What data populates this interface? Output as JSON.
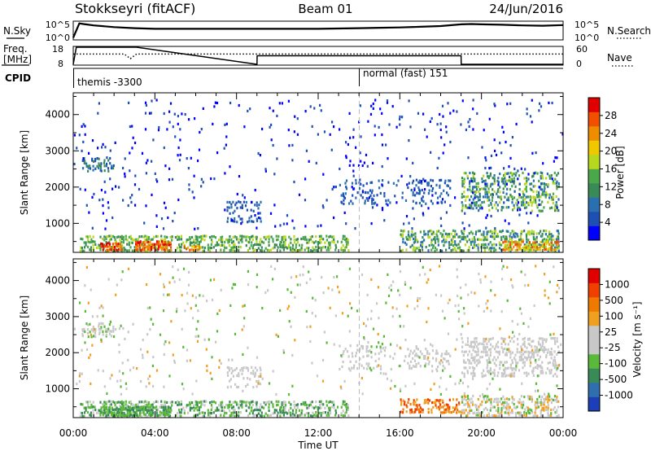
{
  "header": {
    "station": "Stokkseyri (fitACF)",
    "beam": "Beam 01",
    "date": "24/Jun/2016"
  },
  "noise_panel": {
    "left_label": "N.Sky",
    "right_label": "N.Search",
    "left_ticks": [
      "10^5",
      "10^0"
    ],
    "right_ticks": [
      "10^5",
      "10^0"
    ]
  },
  "freq_panel": {
    "left_label_line1": "Freq.",
    "left_label_line2": "[MHz]",
    "right_label": "Nave",
    "left_ticks": [
      "18",
      "8"
    ],
    "right_ticks": [
      "60",
      "0"
    ]
  },
  "cpid_panel": {
    "label": "CPID",
    "programs": [
      {
        "name": "themis -3300",
        "start_hour": 0,
        "end_hour": 14
      },
      {
        "name": "normal (fast) 151",
        "start_hour": 14,
        "end_hour": 24
      }
    ]
  },
  "colors": {
    "power_scale": [
      "#0000ff",
      "#1e50b4",
      "#2a6fb0",
      "#3a8a58",
      "#4aa84a",
      "#b8d820",
      "#f0c800",
      "#f08c00",
      "#f05000",
      "#e00000"
    ],
    "velocity_scale": [
      "#1c3fb8",
      "#2f6fb0",
      "#3a8a58",
      "#5ab83a",
      "#c8c8c8",
      "#c8c8c8",
      "#f0a020",
      "#f07a00",
      "#f04000",
      "#e00000"
    ]
  },
  "chart_data": [
    {
      "type": "line",
      "title": "N.Sky / N.Search",
      "x": [
        0,
        0.3,
        0.5,
        1,
        2,
        3,
        4,
        5,
        6,
        7,
        8,
        9,
        10,
        11,
        12,
        13,
        14,
        15,
        16,
        17,
        18,
        19,
        19.5,
        20,
        21,
        22,
        23,
        24
      ],
      "series": [
        {
          "name": "N.Sky",
          "values": [
            0.4,
            4.6,
            4.4,
            4.0,
            3.5,
            3.2,
            3.0,
            3.0,
            3.0,
            3.0,
            3.0,
            3.0,
            3.0,
            3.0,
            3.0,
            3.1,
            3.2,
            3.3,
            3.4,
            3.6,
            3.8,
            4.3,
            4.4,
            4.3,
            4.2,
            4.0,
            3.9,
            4.1
          ]
        }
      ],
      "ylim": [
        0,
        5
      ],
      "ylabel": "N.Sky",
      "xlim": [
        0,
        24
      ]
    },
    {
      "type": "line",
      "title": "Freq. / Nave",
      "x": [
        0,
        0.15,
        2.5,
        2.8,
        3.1,
        9,
        9.01,
        19,
        19.01,
        24
      ],
      "series": [
        {
          "name": "Freq.",
          "values": [
            8,
            18,
            18,
            18,
            18,
            8,
            13,
            13,
            8,
            8
          ]
        },
        {
          "name": "Nave",
          "values": [
            36,
            36,
            36,
            20,
            36,
            36,
            36,
            36,
            36,
            36
          ]
        }
      ],
      "ylim": [
        8,
        18
      ],
      "ylabel": "Freq. [MHz]",
      "xlim": [
        0,
        24
      ]
    },
    {
      "type": "heatmap",
      "title": "Power",
      "xlabel": "",
      "ylabel": "Slant Range [km]",
      "xlim": [
        0,
        24
      ],
      "ylim": [
        200,
        4600
      ],
      "yticks": [
        1000,
        2000,
        3000,
        4000
      ],
      "colorbar": {
        "label": "Power [dB]",
        "ticks": [
          "28",
          "24",
          "20",
          "16",
          "12",
          "8",
          "4"
        ]
      },
      "regions": [
        {
          "t0": 0.3,
          "t1": 13.5,
          "r0": 200,
          "r1": 650,
          "dens": 0.55,
          "base": 3,
          "spread": 3
        },
        {
          "t0": 1.3,
          "t1": 2.4,
          "r0": 220,
          "r1": 460,
          "dens": 0.85,
          "base": 7,
          "spread": 3
        },
        {
          "t0": 3.0,
          "t1": 4.8,
          "r0": 220,
          "r1": 500,
          "dens": 0.85,
          "base": 7,
          "spread": 3
        },
        {
          "t0": 5.3,
          "t1": 6.2,
          "r0": 220,
          "r1": 380,
          "dens": 0.7,
          "base": 6,
          "spread": 3
        },
        {
          "t0": 0.4,
          "t1": 2.0,
          "r0": 2400,
          "r1": 2800,
          "dens": 0.45,
          "base": 1,
          "spread": 3
        },
        {
          "t0": 7.5,
          "t1": 9.2,
          "r0": 1000,
          "r1": 1600,
          "dens": 0.35,
          "base": 1,
          "spread": 2
        },
        {
          "t0": 13.0,
          "t1": 18.5,
          "r0": 1500,
          "r1": 2200,
          "dens": 0.18,
          "base": 1,
          "spread": 2
        },
        {
          "t0": 19.0,
          "t1": 23.8,
          "r0": 1300,
          "r1": 2400,
          "dens": 0.4,
          "base": 2,
          "spread": 4
        },
        {
          "t0": 16.0,
          "t1": 23.8,
          "r0": 200,
          "r1": 800,
          "dens": 0.5,
          "base": 2,
          "spread": 4
        },
        {
          "t0": 21.0,
          "t1": 23.8,
          "r0": 220,
          "r1": 500,
          "dens": 0.6,
          "base": 5,
          "spread": 4
        },
        {
          "t0": 0.0,
          "t1": 24.0,
          "r0": 800,
          "r1": 4400,
          "dens": 0.03,
          "base": 0,
          "spread": 2
        }
      ]
    },
    {
      "type": "heatmap",
      "title": "Velocity",
      "xlabel": "Time UT",
      "ylabel": "Slant Range [km]",
      "xlim": [
        0,
        24
      ],
      "ylim": [
        200,
        4600
      ],
      "yticks": [
        1000,
        2000,
        3000,
        4000
      ],
      "xticks": [
        "00:00",
        "04:00",
        "08:00",
        "12:00",
        "16:00",
        "20:00",
        "00:00"
      ],
      "colorbar": {
        "label": "Velocity [m s⁻¹]",
        "ticks": [
          "1000",
          "500",
          "100",
          "25",
          "-25",
          "-100",
          "-500",
          "-1000"
        ]
      },
      "regions": [
        {
          "t0": 0.3,
          "t1": 13.5,
          "r0": 200,
          "r1": 650,
          "dens": 0.55,
          "base": 2,
          "spread": 3
        },
        {
          "t0": 1.3,
          "t1": 4.8,
          "r0": 220,
          "r1": 500,
          "dens": 0.8,
          "base": 2,
          "spread": 2
        },
        {
          "t0": 0.4,
          "t1": 2.0,
          "r0": 2400,
          "r1": 2800,
          "dens": 0.45,
          "base": 3,
          "spread": 3
        },
        {
          "t0": 7.5,
          "t1": 9.2,
          "r0": 1000,
          "r1": 1600,
          "dens": 0.35,
          "base": 4,
          "spread": 2
        },
        {
          "t0": 13.0,
          "t1": 18.5,
          "r0": 1500,
          "r1": 2200,
          "dens": 0.18,
          "base": 4,
          "spread": 2
        },
        {
          "t0": 19.0,
          "t1": 23.8,
          "r0": 1300,
          "r1": 2400,
          "dens": 0.4,
          "base": 4,
          "spread": 2
        },
        {
          "t0": 16.0,
          "t1": 19.0,
          "r0": 300,
          "r1": 700,
          "dens": 0.45,
          "base": 6,
          "spread": 3
        },
        {
          "t0": 19.0,
          "t1": 23.8,
          "r0": 200,
          "r1": 800,
          "dens": 0.5,
          "base": 3,
          "spread": 4
        },
        {
          "t0": 0.0,
          "t1": 24.0,
          "r0": 800,
          "r1": 4400,
          "dens": 0.03,
          "base": 3,
          "spread": 4
        }
      ]
    }
  ]
}
